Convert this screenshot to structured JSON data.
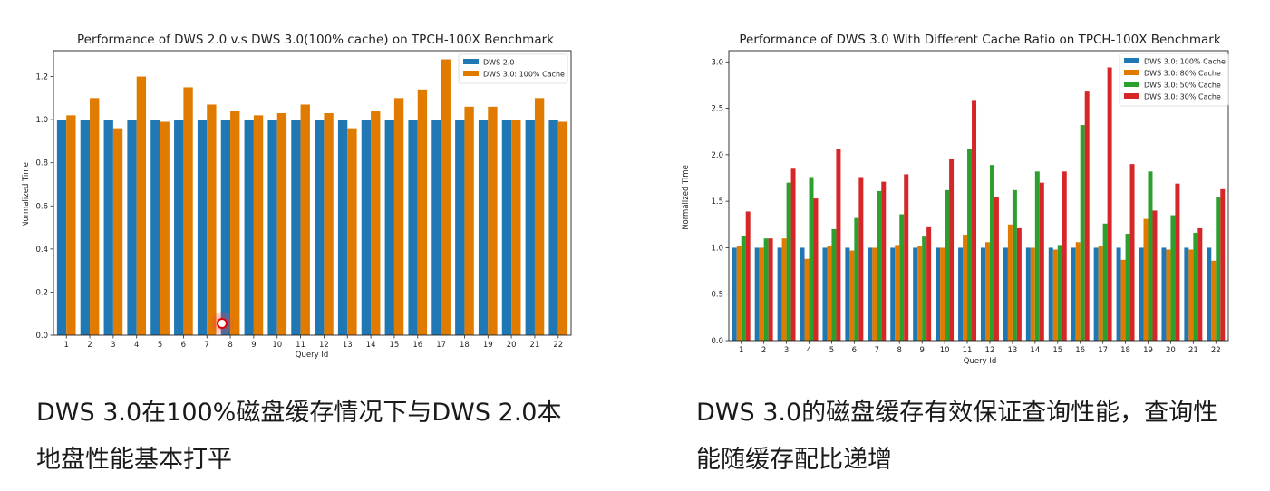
{
  "colors": {
    "blue": "#1f77b4",
    "orange": "#e07b00",
    "green": "#2ca02c",
    "red": "#d62728",
    "cursor": "#e00000"
  },
  "chart_data": [
    {
      "type": "bar",
      "title": "Performance of DWS 2.0 v.s DWS 3.0(100% cache) on TPCH-100X Benchmark",
      "xlabel": "Query Id",
      "ylabel": "Normalized Time",
      "ylim": [
        0,
        1.32
      ],
      "yticks": [
        "0.0",
        "0.2",
        "0.4",
        "0.6",
        "0.8",
        "1.0",
        "1.2"
      ],
      "grid": false,
      "legend_position": "top-right",
      "categories": [
        "1",
        "2",
        "3",
        "4",
        "5",
        "6",
        "7",
        "8",
        "9",
        "10",
        "11",
        "12",
        "13",
        "14",
        "15",
        "16",
        "17",
        "18",
        "19",
        "20",
        "21",
        "22"
      ],
      "series": [
        {
          "name": "DWS 2.0",
          "color_key": "blue",
          "values": [
            1.0,
            1.0,
            1.0,
            1.0,
            1.0,
            1.0,
            1.0,
            1.0,
            1.0,
            1.0,
            1.0,
            1.0,
            1.0,
            1.0,
            1.0,
            1.0,
            1.0,
            1.0,
            1.0,
            1.0,
            1.0,
            1.0
          ]
        },
        {
          "name": "DWS 3.0: 100% Cache",
          "color_key": "orange",
          "values": [
            1.02,
            1.1,
            0.96,
            1.2,
            0.99,
            1.15,
            1.07,
            1.04,
            1.02,
            1.03,
            1.07,
            1.03,
            0.96,
            1.04,
            1.1,
            1.14,
            1.28,
            1.06,
            1.06,
            1.0,
            1.1,
            0.99
          ]
        }
      ]
    },
    {
      "type": "bar",
      "title": "Performance of DWS 3.0 With Different Cache Ratio on TPCH-100X Benchmark",
      "xlabel": "Query Id",
      "ylabel": "Normalized Time",
      "ylim": [
        0,
        3.12
      ],
      "yticks": [
        "0.0",
        "0.5",
        "1.0",
        "1.5",
        "2.0",
        "2.5",
        "3.0"
      ],
      "grid": false,
      "legend_position": "top-right",
      "categories": [
        "1",
        "2",
        "3",
        "4",
        "5",
        "6",
        "7",
        "8",
        "9",
        "10",
        "11",
        "12",
        "13",
        "14",
        "15",
        "16",
        "17",
        "18",
        "19",
        "20",
        "21",
        "22"
      ],
      "series": [
        {
          "name": "DWS 3.0: 100% Cache",
          "color_key": "blue",
          "values": [
            1.0,
            1.0,
            1.0,
            1.0,
            1.0,
            1.0,
            1.0,
            1.0,
            1.0,
            1.0,
            1.0,
            1.0,
            1.0,
            1.0,
            1.0,
            1.0,
            1.0,
            1.0,
            1.0,
            1.0,
            1.0,
            1.0
          ]
        },
        {
          "name": "DWS 3.0: 80% Cache",
          "color_key": "orange",
          "values": [
            1.02,
            1.0,
            1.1,
            0.88,
            1.02,
            0.97,
            1.0,
            1.03,
            1.02,
            1.0,
            1.14,
            1.06,
            1.25,
            1.0,
            0.98,
            1.06,
            1.02,
            0.87,
            1.31,
            0.98,
            0.98,
            0.86
          ]
        },
        {
          "name": "DWS 3.0: 50% Cache",
          "color_key": "green",
          "values": [
            1.13,
            1.1,
            1.7,
            1.76,
            1.2,
            1.32,
            1.61,
            1.36,
            1.12,
            1.62,
            2.06,
            1.89,
            1.62,
            1.82,
            1.03,
            2.32,
            1.26,
            1.15,
            1.82,
            1.35,
            1.16,
            1.54
          ]
        },
        {
          "name": "DWS 3.0: 30% Cache",
          "color_key": "red",
          "values": [
            1.39,
            1.1,
            1.85,
            1.53,
            2.06,
            1.76,
            1.71,
            1.79,
            1.22,
            1.96,
            2.59,
            1.54,
            1.21,
            1.7,
            1.82,
            2.68,
            2.94,
            1.9,
            1.4,
            1.69,
            1.21,
            1.63
          ]
        }
      ]
    }
  ],
  "captions": {
    "left_line1": "DWS 3.0在100%磁盘缓存情况下与DWS 2.0本",
    "left_line2": "地盘性能基本打平",
    "right_line1": "DWS 3.0的磁盘缓存有效保证查询性能，查询性",
    "right_line2": "能随缓存配比递增"
  }
}
